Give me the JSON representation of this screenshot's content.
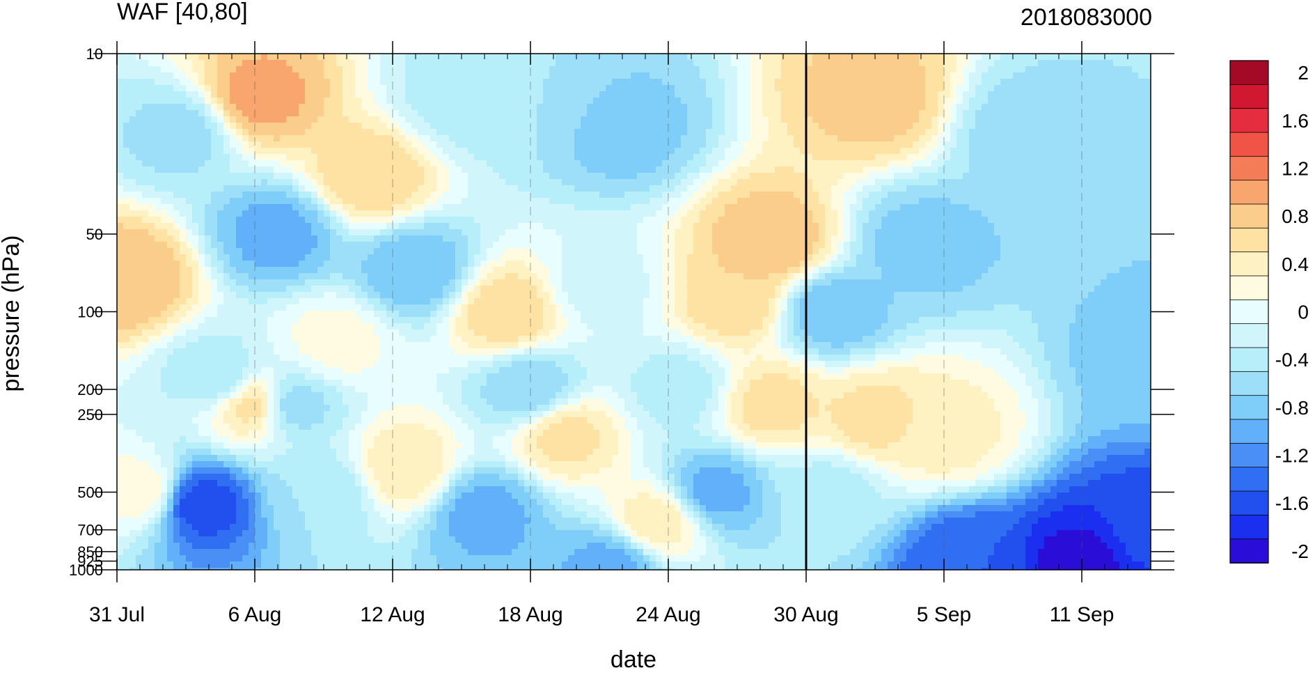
{
  "chart_data": {
    "type": "heatmap",
    "title": "WAF [40,80]",
    "date_code": "2018083000",
    "xlabel": "date",
    "ylabel": "pressure (hPa)",
    "x_start": "31 Jul",
    "x_end": "16 Sep",
    "x_tick_labels": [
      "31 Jul",
      "6 Aug",
      "12 Aug",
      "18 Aug",
      "24 Aug",
      "30 Aug",
      "5 Sep",
      "11 Sep"
    ],
    "x_tick_days": [
      0,
      6,
      12,
      18,
      24,
      30,
      36,
      42
    ],
    "x_minor_step_days": 1,
    "analysis_line_day": 30,
    "y_scale": "log",
    "y_range": [
      10,
      1000
    ],
    "y_levels": [
      10,
      50,
      100,
      200,
      250,
      500,
      700,
      850,
      925,
      1000
    ],
    "y_level_labels": [
      "10",
      "50",
      "100",
      "200",
      "250",
      "500",
      "700",
      "850",
      "925",
      "1000"
    ],
    "colorbar": {
      "levels": [
        -2,
        -1.8,
        -1.6,
        -1.4,
        -1.2,
        -1.0,
        -0.8,
        -0.6,
        -0.4,
        -0.2,
        0,
        0.2,
        0.4,
        0.6,
        0.8,
        1.0,
        1.2,
        1.4,
        1.6,
        1.8,
        2
      ],
      "tick_labels": [
        "2",
        "1.6",
        "1.2",
        "0.8",
        "0.4",
        "0",
        "-0.4",
        "-0.8",
        "-1.2",
        "-1.6",
        "-2"
      ],
      "tick_values": [
        2,
        1.6,
        1.2,
        0.8,
        0.4,
        0,
        -0.4,
        -0.8,
        -1.2,
        -1.6,
        -2
      ],
      "colors": [
        "#2a0dd6",
        "#1a2ff0",
        "#2150ee",
        "#316ff2",
        "#4a8ff6",
        "#62b0f9",
        "#7fcef9",
        "#9ddff9",
        "#b6eefa",
        "#d0f6fb",
        "#e8fdfd",
        "#fffbe0",
        "#fff2c2",
        "#fee2a4",
        "#fbcd8b",
        "#f8a56e",
        "#f47c57",
        "#ef5447",
        "#e52e3d",
        "#d01830",
        "#a40a25"
      ]
    },
    "features": [
      {
        "day": 0.5,
        "p": 75,
        "value": 0.9
      },
      {
        "day": 1.2,
        "p": 500,
        "value": 0.3
      },
      {
        "day": 3.0,
        "p": 20,
        "value": -0.6
      },
      {
        "day": 3.5,
        "p": 550,
        "value": -1.7
      },
      {
        "day": 4.5,
        "p": 180,
        "value": -0.5
      },
      {
        "day": 6.0,
        "p": 15,
        "value": 1.0
      },
      {
        "day": 6.0,
        "p": 230,
        "value": 0.7
      },
      {
        "day": 7.0,
        "p": 50,
        "value": -1.0
      },
      {
        "day": 7.5,
        "p": 230,
        "value": -0.7
      },
      {
        "day": 9.0,
        "p": 500,
        "value": -0.5
      },
      {
        "day": 9.5,
        "p": 130,
        "value": 0.2
      },
      {
        "day": 11.0,
        "p": 30,
        "value": 0.7
      },
      {
        "day": 12.5,
        "p": 400,
        "value": 0.5
      },
      {
        "day": 13.0,
        "p": 70,
        "value": -0.9
      },
      {
        "day": 15.0,
        "p": 15,
        "value": -0.4
      },
      {
        "day": 16.0,
        "p": 600,
        "value": -1.0
      },
      {
        "day": 17.0,
        "p": 100,
        "value": 0.7
      },
      {
        "day": 18.0,
        "p": 15,
        "value": -0.5
      },
      {
        "day": 18.0,
        "p": 200,
        "value": -0.7
      },
      {
        "day": 19.5,
        "p": 300,
        "value": 0.6
      },
      {
        "day": 21.0,
        "p": 80,
        "value": -0.2
      },
      {
        "day": 21.5,
        "p": 950,
        "value": -1.0
      },
      {
        "day": 22.0,
        "p": 20,
        "value": -0.8
      },
      {
        "day": 23.5,
        "p": 650,
        "value": 0.5
      },
      {
        "day": 24.5,
        "p": 200,
        "value": -0.4
      },
      {
        "day": 26.0,
        "p": 500,
        "value": -1.0
      },
      {
        "day": 27.0,
        "p": 90,
        "value": 0.7
      },
      {
        "day": 28.5,
        "p": 55,
        "value": 0.9
      },
      {
        "day": 28.5,
        "p": 230,
        "value": 0.6
      },
      {
        "day": 31.0,
        "p": 100,
        "value": -0.9
      },
      {
        "day": 31.0,
        "p": 500,
        "value": -0.4
      },
      {
        "day": 33.0,
        "p": 15,
        "value": 0.8
      },
      {
        "day": 33.0,
        "p": 260,
        "value": 0.6
      },
      {
        "day": 35.0,
        "p": 55,
        "value": -0.8
      },
      {
        "day": 36.0,
        "p": 300,
        "value": 0.4
      },
      {
        "day": 37.0,
        "p": 900,
        "value": -1.5
      },
      {
        "day": 39.5,
        "p": 20,
        "value": -0.6
      },
      {
        "day": 42.0,
        "p": 950,
        "value": -2.0
      },
      {
        "day": 45.0,
        "p": 700,
        "value": -1.6
      },
      {
        "day": 45.0,
        "p": 150,
        "value": -0.8
      }
    ]
  }
}
